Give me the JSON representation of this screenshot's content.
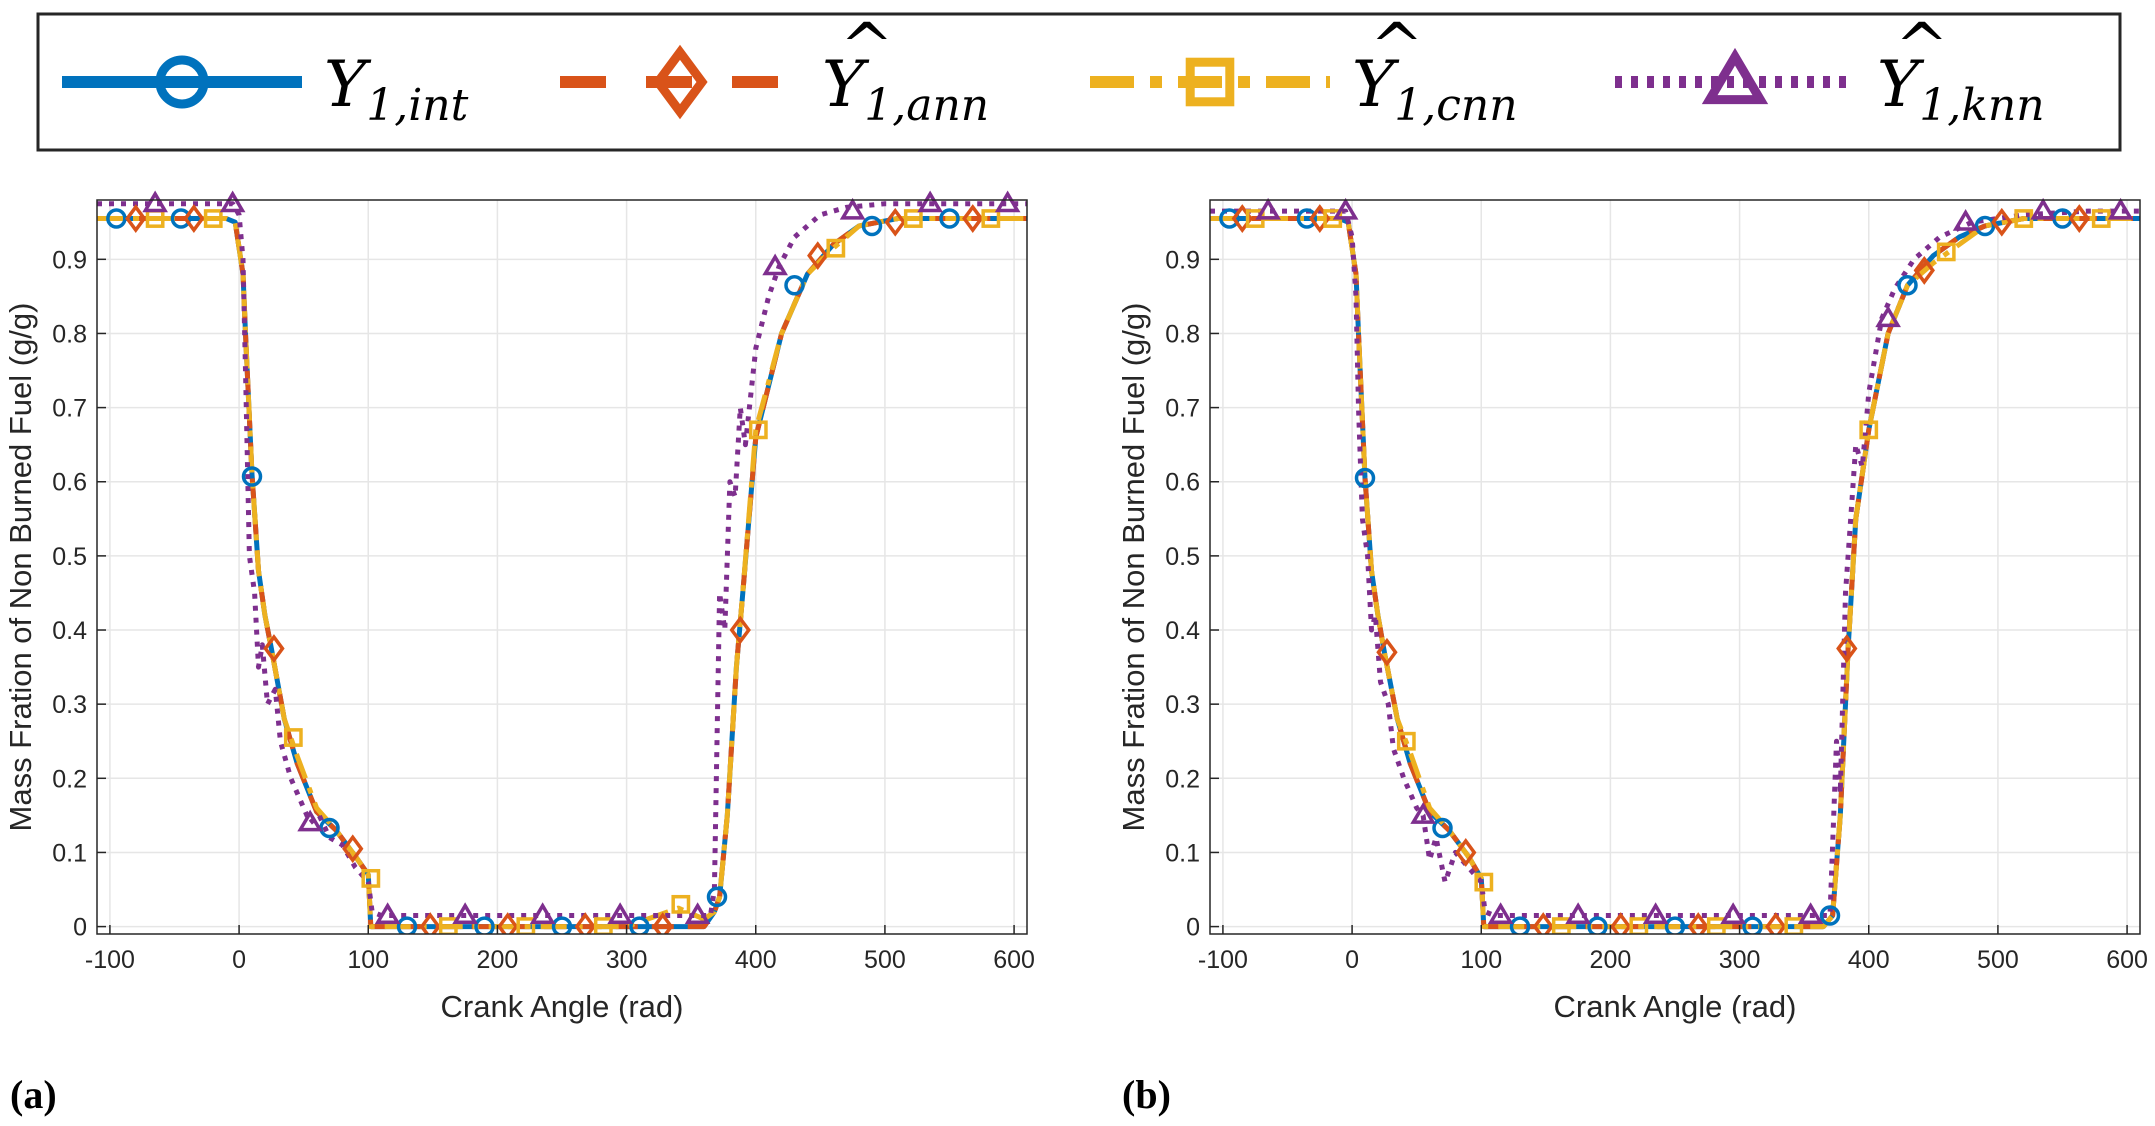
{
  "legend": {
    "items": [
      {
        "name": "Y1,int",
        "main": "Y",
        "sub": "1,int",
        "hat": false,
        "color": "#0072BD",
        "marker": "circle",
        "dash": "solid"
      },
      {
        "name": "Ŷ1,ann",
        "main": "Y",
        "sub": "1,ann",
        "hat": true,
        "color": "#D95319",
        "marker": "diamond",
        "dash": "dashed"
      },
      {
        "name": "Ŷ1,cnn",
        "main": "Y",
        "sub": "1,cnn",
        "hat": true,
        "color": "#EDB120",
        "marker": "square",
        "dash": "dashdot"
      },
      {
        "name": "Ŷ1,knn",
        "main": "Y",
        "sub": "1,knn",
        "hat": true,
        "color": "#7E2F8E",
        "marker": "triangle",
        "dash": "dotted"
      }
    ],
    "hat_symbol": "^"
  },
  "chart_data": [
    {
      "id": "a",
      "panel_label": "(a)",
      "type": "line",
      "title": "",
      "xlabel": "Crank Angle (rad)",
      "ylabel": "Mass Fration of Non Burned Fuel (g/g)",
      "xlim": [
        -110,
        610
      ],
      "ylim": [
        -0.01,
        0.98
      ],
      "xticks": [
        -100,
        0,
        100,
        200,
        300,
        400,
        500,
        600
      ],
      "xtick_labels": [
        "-100",
        "0",
        "100",
        "200",
        "300",
        "400",
        "500",
        "600"
      ],
      "yticks": [
        0,
        0.1,
        0.2,
        0.3,
        0.4,
        0.5,
        0.6,
        0.7,
        0.8,
        0.9
      ],
      "ytick_labels": [
        "0",
        "0.1",
        "0.2",
        "0.3",
        "0.4",
        "0.5",
        "0.6",
        "0.7",
        "0.8",
        "0.9"
      ],
      "grid": true,
      "series": [
        {
          "name": "Y1,int",
          "x": [
            -110,
            -10,
            -3,
            3,
            5,
            10,
            15,
            20,
            25,
            35,
            45,
            60,
            75,
            90,
            100,
            102,
            110,
            200,
            300,
            360,
            368,
            372,
            378,
            385,
            390,
            400,
            420,
            440,
            460,
            480,
            510,
            560,
            610
          ],
          "y": [
            0.955,
            0.955,
            0.95,
            0.88,
            0.8,
            0.61,
            0.48,
            0.42,
            0.375,
            0.28,
            0.22,
            0.155,
            0.13,
            0.095,
            0.07,
            0,
            0,
            0,
            0,
            0,
            0.02,
            0.04,
            0.15,
            0.35,
            0.45,
            0.66,
            0.8,
            0.88,
            0.92,
            0.945,
            0.955,
            0.955,
            0.955
          ],
          "markers_x": [
            -95,
            -45,
            10,
            70,
            130,
            190,
            250,
            310,
            370,
            430,
            490,
            550
          ],
          "markers_y": [
            0.955,
            0.955,
            0.607,
            0.133,
            0,
            0,
            0,
            0,
            0.04,
            0.865,
            0.945,
            0.955
          ]
        },
        {
          "name": "Ŷ1,ann",
          "x": [
            -110,
            -10,
            -3,
            3,
            5,
            10,
            15,
            20,
            25,
            35,
            45,
            60,
            75,
            90,
            100,
            102,
            110,
            200,
            300,
            360,
            368,
            372,
            378,
            385,
            390,
            400,
            420,
            440,
            460,
            480,
            510,
            560,
            610
          ],
          "y": [
            0.955,
            0.955,
            0.95,
            0.88,
            0.8,
            0.61,
            0.48,
            0.42,
            0.375,
            0.28,
            0.22,
            0.155,
            0.13,
            0.095,
            0.07,
            0,
            0,
            0,
            0,
            0,
            0.02,
            0.04,
            0.15,
            0.35,
            0.45,
            0.66,
            0.8,
            0.88,
            0.92,
            0.945,
            0.955,
            0.955,
            0.955
          ],
          "markers_x": [
            -80,
            -35,
            27,
            88,
            148,
            208,
            268,
            328,
            388,
            448,
            508,
            568
          ],
          "markers_y": [
            0.955,
            0.955,
            0.375,
            0.105,
            0,
            0,
            0,
            0,
            0.4,
            0.905,
            0.95,
            0.955
          ]
        },
        {
          "name": "Ŷ1,cnn",
          "x": [
            -110,
            -10,
            -3,
            3,
            5,
            10,
            15,
            20,
            25,
            35,
            45,
            60,
            75,
            90,
            100,
            102,
            110,
            200,
            300,
            340,
            360,
            368,
            372,
            378,
            385,
            390,
            400,
            420,
            440,
            460,
            480,
            510,
            560,
            610
          ],
          "y": [
            0.955,
            0.955,
            0.95,
            0.88,
            0.8,
            0.61,
            0.48,
            0.42,
            0.375,
            0.28,
            0.23,
            0.16,
            0.13,
            0.095,
            0.07,
            0,
            0,
            0,
            0,
            0.025,
            0.01,
            0.02,
            0.04,
            0.15,
            0.35,
            0.45,
            0.67,
            0.8,
            0.88,
            0.915,
            0.945,
            0.955,
            0.955,
            0.955
          ],
          "markers_x": [
            -65,
            -20,
            42,
            102,
            162,
            222,
            282,
            342,
            402,
            462,
            522,
            582
          ],
          "markers_y": [
            0.955,
            0.955,
            0.255,
            0.065,
            0,
            0,
            0,
            0.03,
            0.67,
            0.915,
            0.955,
            0.955
          ]
        },
        {
          "name": "Ŷ1,knn",
          "x": [
            -110,
            -5,
            0,
            3,
            5,
            8,
            12,
            15,
            18,
            22,
            28,
            32,
            40,
            50,
            55,
            62,
            70,
            80,
            90,
            100,
            103,
            110,
            200,
            300,
            365,
            368,
            372,
            376,
            380,
            384,
            388,
            392,
            400,
            410,
            418,
            430,
            450,
            470,
            500,
            540,
            610
          ],
          "y": [
            0.975,
            0.975,
            0.96,
            0.9,
            0.75,
            0.5,
            0.45,
            0.35,
            0.38,
            0.3,
            0.32,
            0.25,
            0.2,
            0.16,
            0.14,
            0.15,
            0.12,
            0.11,
            0.08,
            0.06,
            0.02,
            0.015,
            0.015,
            0.015,
            0.015,
            0.05,
            0.45,
            0.4,
            0.6,
            0.58,
            0.7,
            0.65,
            0.78,
            0.85,
            0.89,
            0.93,
            0.96,
            0.97,
            0.975,
            0.975,
            0.975
          ],
          "markers_x": [
            -65,
            -5,
            55,
            115,
            175,
            235,
            295,
            355,
            415,
            475,
            535,
            595
          ],
          "markers_y": [
            0.975,
            0.975,
            0.14,
            0.015,
            0.015,
            0.015,
            0.015,
            0.015,
            0.89,
            0.965,
            0.975,
            0.975
          ]
        }
      ]
    },
    {
      "id": "b",
      "panel_label": "(b)",
      "type": "line",
      "title": "",
      "xlabel": "Crank Angle (rad)",
      "ylabel": "Mass Fration of Non Burned Fuel (g/g)",
      "xlim": [
        -110,
        610
      ],
      "ylim": [
        -0.01,
        0.98
      ],
      "xticks": [
        -100,
        0,
        100,
        200,
        300,
        400,
        500,
        600
      ],
      "xtick_labels": [
        "-100",
        "0",
        "100",
        "200",
        "300",
        "400",
        "500",
        "600"
      ],
      "yticks": [
        0,
        0.1,
        0.2,
        0.3,
        0.4,
        0.5,
        0.6,
        0.7,
        0.8,
        0.9
      ],
      "ytick_labels": [
        "0",
        "0.1",
        "0.2",
        "0.3",
        "0.4",
        "0.5",
        "0.6",
        "0.7",
        "0.8",
        "0.9"
      ],
      "grid": true,
      "series": [
        {
          "name": "Y1,int",
          "x": [
            -110,
            -10,
            -3,
            3,
            5,
            10,
            15,
            20,
            25,
            35,
            45,
            60,
            75,
            90,
            100,
            102,
            110,
            200,
            300,
            365,
            372,
            378,
            384,
            390,
            400,
            415,
            430,
            450,
            470,
            490,
            520,
            560,
            610
          ],
          "y": [
            0.955,
            0.955,
            0.95,
            0.88,
            0.8,
            0.605,
            0.48,
            0.42,
            0.37,
            0.28,
            0.22,
            0.155,
            0.13,
            0.095,
            0.065,
            0,
            0,
            0,
            0,
            0,
            0.015,
            0.15,
            0.375,
            0.55,
            0.67,
            0.8,
            0.865,
            0.905,
            0.93,
            0.945,
            0.955,
            0.955,
            0.955
          ],
          "markers_x": [
            -95,
            -35,
            10,
            70,
            130,
            190,
            250,
            310,
            370,
            430,
            490,
            550
          ],
          "markers_y": [
            0.955,
            0.955,
            0.605,
            0.133,
            0,
            0,
            0,
            0,
            0.015,
            0.865,
            0.945,
            0.955
          ]
        },
        {
          "name": "Ŷ1,ann",
          "x": [
            -110,
            -10,
            -3,
            3,
            5,
            10,
            15,
            20,
            25,
            35,
            45,
            60,
            75,
            90,
            100,
            102,
            110,
            200,
            300,
            365,
            372,
            378,
            384,
            390,
            400,
            415,
            430,
            450,
            470,
            490,
            520,
            560,
            610
          ],
          "y": [
            0.955,
            0.955,
            0.95,
            0.88,
            0.8,
            0.605,
            0.48,
            0.42,
            0.37,
            0.28,
            0.22,
            0.155,
            0.13,
            0.095,
            0.065,
            0,
            0,
            0,
            0,
            0,
            0.015,
            0.15,
            0.375,
            0.55,
            0.67,
            0.8,
            0.865,
            0.905,
            0.93,
            0.945,
            0.955,
            0.955,
            0.955
          ],
          "markers_x": [
            -85,
            -25,
            27,
            88,
            148,
            208,
            268,
            328,
            383,
            443,
            503,
            563
          ],
          "markers_y": [
            0.955,
            0.955,
            0.37,
            0.1,
            0,
            0,
            0,
            0,
            0.375,
            0.885,
            0.95,
            0.955
          ]
        },
        {
          "name": "Ŷ1,cnn",
          "x": [
            -110,
            -10,
            -3,
            3,
            5,
            10,
            15,
            20,
            25,
            35,
            45,
            60,
            75,
            90,
            100,
            102,
            110,
            200,
            300,
            365,
            372,
            378,
            384,
            390,
            400,
            415,
            430,
            450,
            470,
            490,
            520,
            560,
            610
          ],
          "y": [
            0.955,
            0.955,
            0.95,
            0.88,
            0.8,
            0.605,
            0.48,
            0.42,
            0.37,
            0.28,
            0.235,
            0.16,
            0.13,
            0.095,
            0.065,
            0,
            0,
            0,
            0,
            0,
            0.015,
            0.15,
            0.375,
            0.55,
            0.67,
            0.8,
            0.865,
            0.895,
            0.92,
            0.945,
            0.955,
            0.955,
            0.955
          ],
          "markers_x": [
            -75,
            -15,
            42,
            102,
            162,
            222,
            282,
            342,
            400,
            460,
            520,
            580
          ],
          "markers_y": [
            0.955,
            0.955,
            0.25,
            0.06,
            0,
            0,
            0,
            0,
            0.67,
            0.91,
            0.955,
            0.955
          ]
        },
        {
          "name": "Ŷ1,knn",
          "x": [
            -110,
            -5,
            0,
            3,
            5,
            8,
            12,
            15,
            18,
            22,
            28,
            32,
            40,
            50,
            55,
            60,
            65,
            72,
            80,
            90,
            100,
            103,
            110,
            200,
            300,
            370,
            375,
            378,
            382,
            386,
            390,
            395,
            400,
            410,
            420,
            435,
            455,
            480,
            520,
            570,
            610
          ],
          "y": [
            0.965,
            0.965,
            0.93,
            0.85,
            0.7,
            0.55,
            0.5,
            0.4,
            0.42,
            0.33,
            0.3,
            0.24,
            0.2,
            0.16,
            0.15,
            0.09,
            0.12,
            0.06,
            0.1,
            0.08,
            0.06,
            0.02,
            0.015,
            0.015,
            0.015,
            0.015,
            0.25,
            0.18,
            0.45,
            0.55,
            0.65,
            0.62,
            0.72,
            0.82,
            0.86,
            0.9,
            0.93,
            0.95,
            0.96,
            0.965,
            0.965
          ],
          "markers_x": [
            -65,
            -5,
            55,
            115,
            175,
            235,
            295,
            355,
            415,
            475,
            535,
            595
          ],
          "markers_y": [
            0.965,
            0.965,
            0.15,
            0.015,
            0.015,
            0.015,
            0.015,
            0.015,
            0.82,
            0.95,
            0.965,
            0.965
          ]
        }
      ]
    }
  ]
}
